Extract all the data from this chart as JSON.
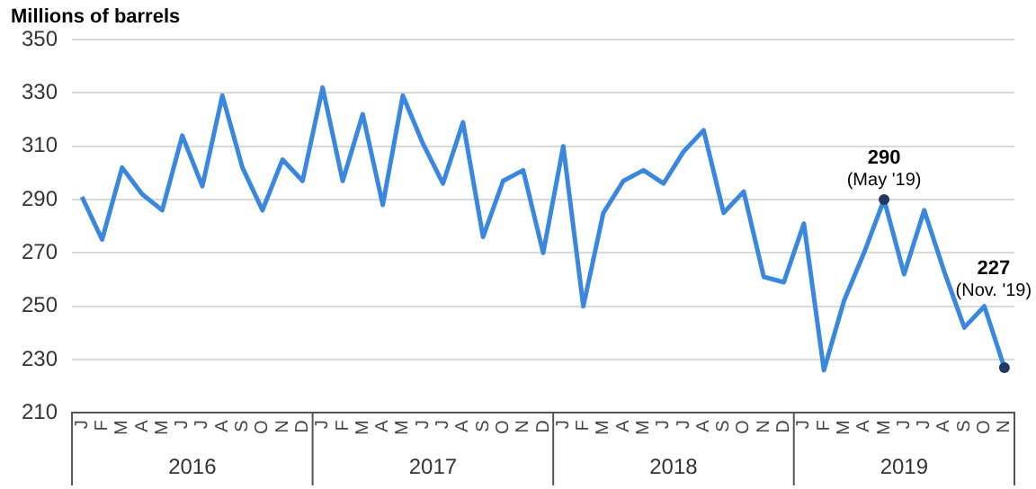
{
  "chart_data": {
    "type": "line",
    "ylabel": "Millions of barrels",
    "categories": [
      "J",
      "F",
      "M",
      "A",
      "M",
      "J",
      "J",
      "A",
      "S",
      "O",
      "N",
      "D",
      "J",
      "F",
      "M",
      "A",
      "M",
      "J",
      "J",
      "A",
      "S",
      "O",
      "N",
      "D",
      "J",
      "F",
      "M",
      "A",
      "M",
      "J",
      "J",
      "A",
      "S",
      "O",
      "N",
      "D",
      "J",
      "F",
      "M",
      "A",
      "M",
      "J",
      "J",
      "A",
      "S",
      "O",
      "N"
    ],
    "series": [
      {
        "color": "#3a87e0",
        "values": [
          291,
          275,
          302,
          292,
          286,
          314,
          295,
          329,
          302,
          286,
          305,
          297,
          332,
          297,
          322,
          288,
          329,
          311,
          296,
          319,
          276,
          297,
          301,
          270,
          310,
          250,
          285,
          297,
          301,
          296,
          308,
          316,
          285,
          293,
          261,
          259,
          281,
          226,
          252,
          270,
          290,
          262,
          286,
          263,
          242,
          250,
          227
        ]
      }
    ],
    "ylim": [
      210,
      350
    ],
    "yticks": [
      210,
      230,
      250,
      270,
      290,
      310,
      330,
      350
    ],
    "grid": "y",
    "legend": false,
    "marker": "none",
    "line_style": "solid",
    "annotations": [
      "2016",
      "2017",
      "2018",
      "2019",
      "290\n(May '19)",
      "227\n(Nov. '19)"
    ]
  }
}
